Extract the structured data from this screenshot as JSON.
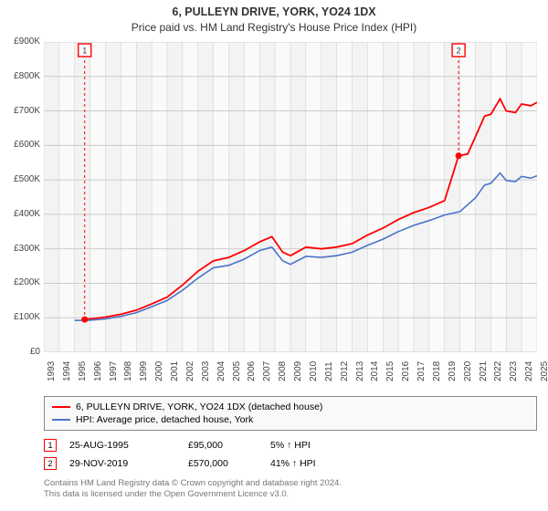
{
  "title_line1": "6, PULLEYN DRIVE, YORK, YO24 1DX",
  "title_line2": "Price paid vs. HM Land Registry's House Price Index (HPI)",
  "chart": {
    "type": "line",
    "background_color": "#f9f9f9",
    "border_color": "#888888",
    "grid_color": "#cccccc",
    "banding_colors": [
      "#f3f3f3",
      "#fafafa"
    ],
    "xlim": [
      1993,
      2025
    ],
    "ylim": [
      0,
      900000
    ],
    "y_ticks": [
      0,
      100000,
      200000,
      300000,
      400000,
      500000,
      600000,
      700000,
      800000,
      900000
    ],
    "y_tick_labels": [
      "£0",
      "£100K",
      "£200K",
      "£300K",
      "£400K",
      "£500K",
      "£600K",
      "£700K",
      "£800K",
      "£900K"
    ],
    "x_ticks": [
      1993,
      1994,
      1995,
      1996,
      1997,
      1998,
      1999,
      2000,
      2001,
      2002,
      2003,
      2004,
      2005,
      2006,
      2007,
      2008,
      2009,
      2010,
      2011,
      2012,
      2013,
      2014,
      2015,
      2016,
      2017,
      2018,
      2019,
      2020,
      2021,
      2022,
      2023,
      2024,
      2025
    ],
    "label_fontsize": 10,
    "series": [
      {
        "name": "6, PULLEYN DRIVE, YORK, YO24 1DX (detached house)",
        "color": "#ff0000",
        "line_width": 1.8,
        "data": [
          [
            1995.65,
            95000
          ],
          [
            1996,
            97000
          ],
          [
            1997,
            102000
          ],
          [
            1998,
            110000
          ],
          [
            1999,
            122000
          ],
          [
            2000,
            140000
          ],
          [
            2001,
            160000
          ],
          [
            2002,
            195000
          ],
          [
            2003,
            235000
          ],
          [
            2004,
            265000
          ],
          [
            2005,
            275000
          ],
          [
            2006,
            295000
          ],
          [
            2007,
            320000
          ],
          [
            2007.8,
            335000
          ],
          [
            2008.5,
            290000
          ],
          [
            2009,
            280000
          ],
          [
            2010,
            305000
          ],
          [
            2011,
            300000
          ],
          [
            2012,
            305000
          ],
          [
            2013,
            315000
          ],
          [
            2014,
            340000
          ],
          [
            2015,
            360000
          ],
          [
            2016,
            385000
          ],
          [
            2017,
            405000
          ],
          [
            2018,
            420000
          ],
          [
            2019,
            440000
          ],
          [
            2019.91,
            570000
          ],
          [
            2020.5,
            575000
          ],
          [
            2021,
            625000
          ],
          [
            2021.6,
            685000
          ],
          [
            2022,
            690000
          ],
          [
            2022.6,
            735000
          ],
          [
            2023,
            700000
          ],
          [
            2023.6,
            695000
          ],
          [
            2024,
            720000
          ],
          [
            2024.6,
            715000
          ],
          [
            2025,
            725000
          ]
        ]
      },
      {
        "name": "HPI: Average price, detached house, York",
        "color": "#4a74c9",
        "line_width": 1.6,
        "data": [
          [
            1995,
            92000
          ],
          [
            1996,
            93000
          ],
          [
            1997,
            97000
          ],
          [
            1998,
            104000
          ],
          [
            1999,
            115000
          ],
          [
            2000,
            132000
          ],
          [
            2001,
            150000
          ],
          [
            2002,
            180000
          ],
          [
            2003,
            215000
          ],
          [
            2004,
            245000
          ],
          [
            2005,
            252000
          ],
          [
            2006,
            270000
          ],
          [
            2007,
            295000
          ],
          [
            2007.8,
            305000
          ],
          [
            2008.5,
            265000
          ],
          [
            2009,
            255000
          ],
          [
            2010,
            278000
          ],
          [
            2011,
            275000
          ],
          [
            2012,
            280000
          ],
          [
            2013,
            290000
          ],
          [
            2014,
            310000
          ],
          [
            2015,
            328000
          ],
          [
            2016,
            350000
          ],
          [
            2017,
            368000
          ],
          [
            2018,
            382000
          ],
          [
            2019,
            398000
          ],
          [
            2020,
            408000
          ],
          [
            2021,
            448000
          ],
          [
            2021.6,
            485000
          ],
          [
            2022,
            490000
          ],
          [
            2022.6,
            520000
          ],
          [
            2023,
            498000
          ],
          [
            2023.6,
            495000
          ],
          [
            2024,
            510000
          ],
          [
            2024.6,
            505000
          ],
          [
            2025,
            512000
          ]
        ]
      }
    ],
    "markers": [
      {
        "label": "1",
        "x": 1995.65,
        "y": 95000,
        "color": "#ff0000",
        "box_fill": "#ffffff"
      },
      {
        "label": "2",
        "x": 2019.91,
        "y": 570000,
        "color": "#ff0000",
        "box_fill": "#ffffff"
      }
    ]
  },
  "legend": {
    "items": [
      {
        "color": "#ff0000",
        "label": "6, PULLEYN DRIVE, YORK, YO24 1DX (detached house)"
      },
      {
        "color": "#4a74c9",
        "label": "HPI: Average price, detached house, York"
      }
    ]
  },
  "transactions": [
    {
      "marker": "1",
      "date": "25-AUG-1995",
      "price": "£95,000",
      "pct": "5% ↑ HPI"
    },
    {
      "marker": "2",
      "date": "29-NOV-2019",
      "price": "£570,000",
      "pct": "41% ↑ HPI"
    }
  ],
  "footer_line1": "Contains HM Land Registry data © Crown copyright and database right 2024.",
  "footer_line2": "This data is licensed under the Open Government Licence v3.0."
}
